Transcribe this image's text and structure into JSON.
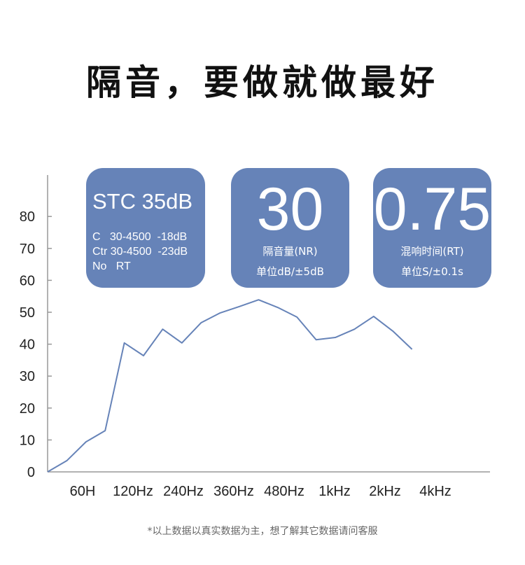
{
  "title": "隔音，要做就做最好",
  "cards": [
    {
      "heading": "STC 35dB",
      "lines": [
        "C   30-4500  -18dB",
        "Ctr 30-4500  -23dB",
        "No   RT"
      ]
    },
    {
      "value": "30",
      "label": "隔音量(NR)",
      "unit": "单位dB/±5dB"
    },
    {
      "value": "0.75",
      "label": "混响时间(RT)",
      "unit": "单位S/±0.1s"
    }
  ],
  "colors": {
    "card": "#6683b8",
    "line": "#6683b8",
    "axis": "#999999"
  },
  "chart_data": {
    "type": "line",
    "x_tick_labels": [
      "60H",
      "120Hz",
      "240Hz",
      "360Hz",
      "480Hz",
      "1kHz",
      "2kHz",
      "4kHz"
    ],
    "y_ticks": [
      0,
      10,
      20,
      30,
      40,
      50,
      60,
      70,
      80
    ],
    "ylim": [
      0,
      90
    ],
    "grid": false,
    "values": [
      0,
      3.5,
      9.4,
      12.9,
      40.4,
      36.4,
      44.7,
      40.4,
      46.7,
      49.8,
      51.8,
      53.9,
      51.5,
      48.5,
      41.4,
      42.1,
      44.7,
      48.7,
      44.1,
      38.4
    ]
  },
  "footnote": "*以上数据以真实数据为主，想了解其它数据请问客服"
}
